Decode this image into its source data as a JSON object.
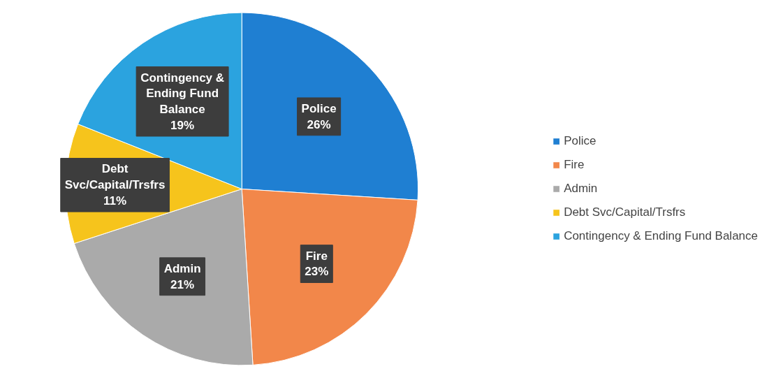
{
  "chart_data": {
    "type": "pie",
    "categories": [
      "Police",
      "Fire",
      "Admin",
      "Debt Svc/Capital/Trsfrs",
      "Contingency & Ending Fund Balance"
    ],
    "values": [
      26,
      23,
      21,
      11,
      19
    ],
    "colors": [
      "#1f7fd2",
      "#f2874a",
      "#aaaaaa",
      "#f6c41c",
      "#2ba3df"
    ],
    "value_labels": [
      "26%",
      "23%",
      "21%",
      "11%",
      "19%"
    ],
    "legend": "right"
  }
}
